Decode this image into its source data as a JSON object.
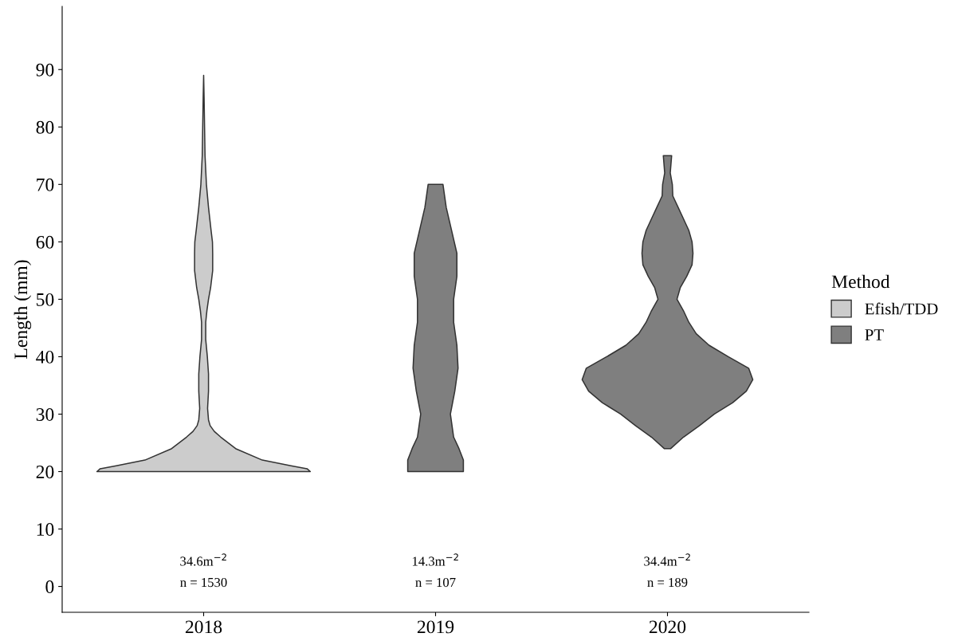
{
  "chart_data": {
    "type": "area",
    "ylabel": "Length (mm)",
    "legend_title": "Method",
    "legend": "right",
    "xlim": [
      2017.39,
      2020.61
    ],
    "xticks": [
      2018,
      2019,
      2020
    ],
    "ylim": [
      -4.5,
      101
    ],
    "yticks": [
      0,
      10,
      20,
      30,
      40,
      50,
      60,
      70,
      80,
      90
    ],
    "grid": false,
    "series": [
      {
        "name": "Efish/TDD",
        "color": "#cccccc",
        "x": [
          2018.46,
          2018.446,
          2018.377,
          2018.253,
          2018.138,
          2018.074,
          2018.046,
          2018.028,
          2018.021,
          2018.017,
          2018.021,
          2018.021,
          2018.016,
          2018.009,
          2018.009,
          2018.014,
          2018.021,
          2018.03,
          2018.039,
          2018.039,
          2018.038,
          2018.032,
          2018.021,
          2018.012,
          2018.006,
          2018.004,
          2018.002,
          2018,
          2017.998,
          2017.996,
          2017.994,
          2017.988,
          2017.979,
          2017.968,
          2017.962,
          2017.961,
          2017.961,
          2017.97,
          2017.979,
          2017.986,
          2017.991,
          2017.991,
          2017.984,
          2017.979,
          2017.979,
          2017.983,
          2017.979,
          2017.972,
          2017.954,
          2017.926,
          2017.862,
          2017.747,
          2017.623,
          2017.554,
          2017.54
        ],
        "values": [
          20,
          20.5,
          21,
          22,
          24,
          26,
          27,
          28,
          29,
          31,
          34,
          37,
          40,
          43,
          46,
          48,
          50,
          52,
          55,
          58,
          60,
          62,
          66,
          70,
          75,
          80,
          85,
          89,
          85,
          80,
          75,
          70,
          66,
          62,
          60,
          58,
          55,
          52,
          50,
          48,
          46,
          43,
          40,
          37,
          34,
          31,
          29,
          28,
          27,
          26,
          24,
          22,
          21,
          20.5,
          20
        ]
      },
      {
        "name": "PT",
        "color": "#7f7f7f",
        "x": [
          2019.12,
          2019.12,
          2019.101,
          2019.078,
          2019.064,
          2019.083,
          2019.097,
          2019.092,
          2019.078,
          2019.078,
          2019.092,
          2019.092,
          2019.069,
          2019.046,
          2019.032,
          2018.968,
          2018.954,
          2018.931,
          2018.908,
          2018.908,
          2018.922,
          2018.922,
          2018.908,
          2018.903,
          2018.917,
          2018.936,
          2018.922,
          2018.899,
          2018.88,
          2018.88
        ],
        "values": [
          20,
          22,
          24,
          26,
          30,
          34,
          38,
          42,
          46,
          50,
          54,
          58,
          62,
          66,
          70,
          70,
          66,
          62,
          58,
          54,
          50,
          46,
          42,
          38,
          34,
          30,
          26,
          24,
          22,
          20
        ]
      },
      {
        "color": "#7f7f7f",
        "x": [
          2020.014,
          2020.069,
          2020.138,
          2020.202,
          2020.281,
          2020.34,
          2020.368,
          2020.35,
          2020.262,
          2020.179,
          2020.124,
          2020.092,
          2020.069,
          2020.041,
          2020.055,
          2020.083,
          2020.106,
          2020.11,
          2020.106,
          2020.092,
          2020.069,
          2020.046,
          2020.023,
          2020.021,
          2020.012,
          2020.018,
          2019.982,
          2019.988,
          2019.979,
          2019.977,
          2019.954,
          2019.931,
          2019.908,
          2019.894,
          2019.89,
          2019.894,
          2019.917,
          2019.945,
          2019.959,
          2019.931,
          2019.908,
          2019.876,
          2019.821,
          2019.738,
          2019.65,
          2019.632,
          2019.66,
          2019.719,
          2019.798,
          2019.862,
          2019.931,
          2019.986
        ],
        "values": [
          24,
          26,
          28,
          30,
          32,
          34,
          36,
          38,
          40,
          42,
          44,
          46,
          48,
          50,
          52,
          54,
          56,
          58,
          60,
          62,
          64,
          66,
          68,
          70,
          72,
          75,
          75,
          72,
          70,
          68,
          66,
          64,
          62,
          60,
          58,
          56,
          54,
          52,
          50,
          48,
          46,
          44,
          42,
          40,
          38,
          36,
          34,
          32,
          30,
          28,
          26,
          24
        ]
      }
    ],
    "annotations": [
      "34.6m$^{−2}$",
      "n = 1530",
      "14.3m$^{−2}$",
      "n = 107",
      "34.4m$^{−2}$",
      "n = 189"
    ]
  }
}
